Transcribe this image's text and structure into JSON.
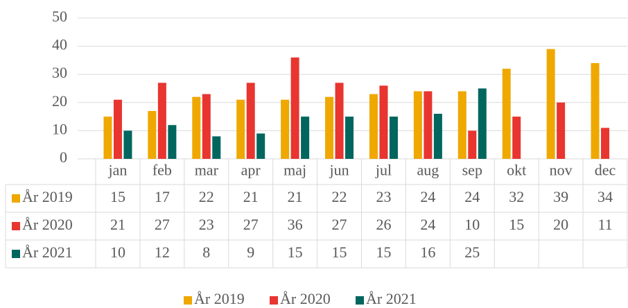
{
  "chart_data": {
    "type": "bar",
    "categories": [
      "jan",
      "feb",
      "mar",
      "apr",
      "maj",
      "jun",
      "jul",
      "aug",
      "sep",
      "okt",
      "nov",
      "dec"
    ],
    "series": [
      {
        "name": "År 2019",
        "color": "#efa800",
        "values": [
          15,
          17,
          22,
          21,
          21,
          22,
          23,
          24,
          24,
          32,
          39,
          34
        ]
      },
      {
        "name": "År 2020",
        "color": "#e83530",
        "values": [
          21,
          27,
          23,
          27,
          36,
          27,
          26,
          24,
          10,
          15,
          20,
          11
        ]
      },
      {
        "name": "År 2021",
        "color": "#00665e",
        "values": [
          10,
          12,
          8,
          9,
          15,
          15,
          15,
          16,
          25,
          null,
          null,
          null
        ]
      }
    ],
    "ylim": [
      0,
      50
    ],
    "yticks": [
      0,
      10,
      20,
      30,
      40,
      50
    ],
    "grid": true,
    "data_table": true,
    "legend": "bottom"
  }
}
